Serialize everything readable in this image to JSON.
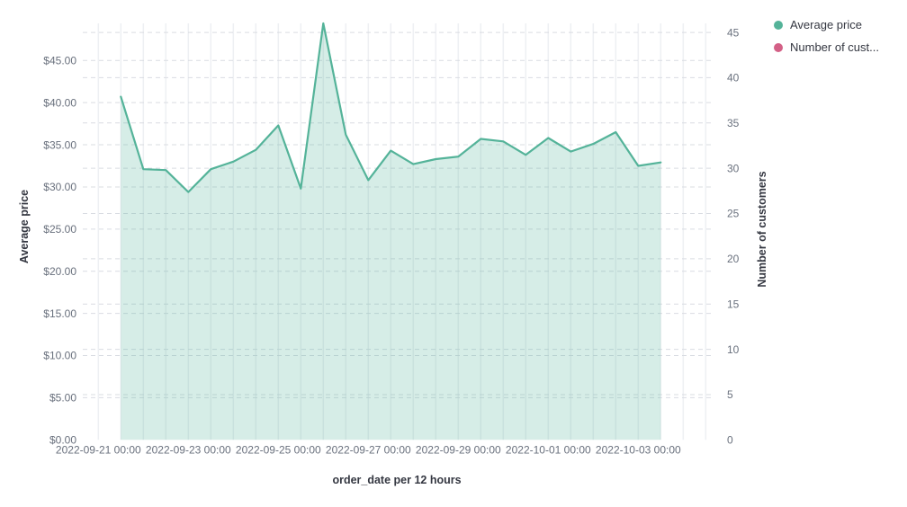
{
  "chart_data": {
    "type": "area",
    "title": "",
    "xlabel": "order_date per 12 hours",
    "ylabel_left": "Average price",
    "ylabel_right": "Number of customers",
    "legend_position": "top-right",
    "grid": true,
    "interval": "12 hours",
    "x": [
      "2022-09-21 12:00",
      "2022-09-22 00:00",
      "2022-09-22 12:00",
      "2022-09-23 00:00",
      "2022-09-23 12:00",
      "2022-09-24 00:00",
      "2022-09-24 12:00",
      "2022-09-25 00:00",
      "2022-09-25 12:00",
      "2022-09-26 00:00",
      "2022-09-26 12:00",
      "2022-09-27 00:00",
      "2022-09-27 12:00",
      "2022-09-28 00:00",
      "2022-09-28 12:00",
      "2022-09-29 00:00",
      "2022-09-29 12:00",
      "2022-09-30 00:00",
      "2022-09-30 12:00",
      "2022-10-01 00:00",
      "2022-10-01 12:00",
      "2022-10-02 00:00",
      "2022-10-02 12:00",
      "2022-10-03 00:00",
      "2022-10-03 12:00"
    ],
    "series": [
      {
        "name": "Average price",
        "type": "area",
        "axis": "left",
        "color": "#54B399",
        "values": [
          40.7,
          32.1,
          32,
          29.4,
          32.1,
          33,
          34.4,
          37.3,
          29.8,
          49.4,
          36.2,
          30.8,
          34.3,
          32.7,
          33.3,
          33.6,
          35.7,
          35.4,
          33.8,
          35.8,
          34.2,
          35.1,
          36.5,
          32.5,
          32.9
        ]
      },
      {
        "name": "Number of customers",
        "type": "line",
        "axis": "right",
        "color": "#D36086",
        "values": []
      }
    ],
    "legend": [
      {
        "label": "Average price",
        "color": "#54B399"
      },
      {
        "label": "Number of cust...",
        "color": "#D36086"
      }
    ],
    "left_axis": {
      "title": "Average price",
      "min": 0,
      "max": 49.4,
      "tick_step": 5,
      "tick_labels": [
        "$0.00",
        "$5.00",
        "$10.00",
        "$15.00",
        "$20.00",
        "$25.00",
        "$30.00",
        "$35.00",
        "$40.00",
        "$45.00"
      ]
    },
    "right_axis": {
      "title": "Number of customers",
      "min": 0,
      "max": 46,
      "tick_step": 5,
      "tick_labels": [
        "0",
        "5",
        "10",
        "15",
        "20",
        "25",
        "30",
        "35",
        "40",
        "45"
      ]
    },
    "x_axis": {
      "title": "order_date per 12 hours",
      "tick_labels": [
        "2022-09-21 00:00",
        "2022-09-23 00:00",
        "2022-09-25 00:00",
        "2022-09-27 00:00",
        "2022-09-29 00:00",
        "2022-10-01 00:00",
        "2022-10-03 00:00"
      ]
    }
  },
  "colors": {
    "series_green": "#54B399",
    "series_pink": "#D36086",
    "tick_text": "#69707D",
    "title_text": "#343741",
    "grid_solid": "#eef0f3",
    "grid_dashed": "#d9dce2"
  }
}
